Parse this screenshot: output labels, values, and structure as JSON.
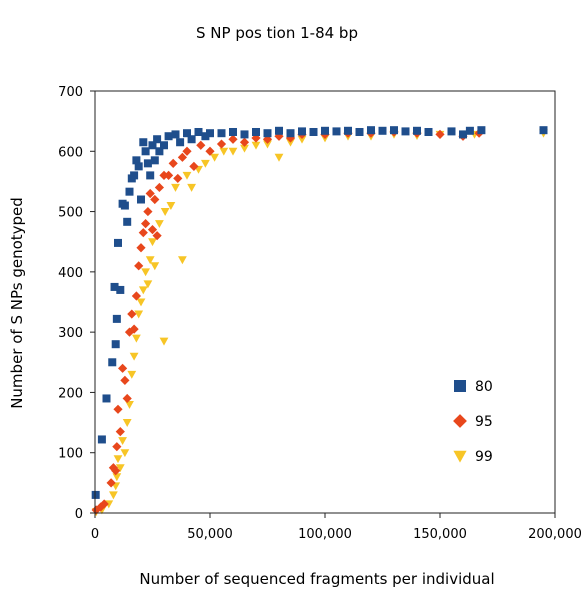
{
  "chart_data": {
    "type": "scatter",
    "title": "S NP pos tion 1-84 bp",
    "xlabel": "Number of sequenced fragments per individual",
    "ylabel": "Number of S NPs genotyped",
    "xlim": [
      0,
      200000
    ],
    "ylim": [
      0,
      700
    ],
    "x_ticks": [
      "0",
      "50,000",
      "100,000",
      "150,000",
      "200,000"
    ],
    "y_ticks": [
      "0",
      "100",
      "200",
      "300",
      "400",
      "500",
      "600",
      "700"
    ],
    "grid": false,
    "legend_position": "lower-right",
    "series": [
      {
        "name": "80",
        "marker": "square",
        "color": "#1f4e8c",
        "points": [
          [
            300,
            30
          ],
          [
            3000,
            122
          ],
          [
            5000,
            190
          ],
          [
            7500,
            250
          ],
          [
            8500,
            375
          ],
          [
            9000,
            280
          ],
          [
            9500,
            322
          ],
          [
            10000,
            448
          ],
          [
            11000,
            370
          ],
          [
            12000,
            513
          ],
          [
            13000,
            510
          ],
          [
            14000,
            483
          ],
          [
            15000,
            533
          ],
          [
            16000,
            555
          ],
          [
            17000,
            560
          ],
          [
            18000,
            585
          ],
          [
            19000,
            575
          ],
          [
            20000,
            520
          ],
          [
            21000,
            615
          ],
          [
            22000,
            600
          ],
          [
            23000,
            580
          ],
          [
            24000,
            560
          ],
          [
            25000,
            610
          ],
          [
            26000,
            585
          ],
          [
            27000,
            620
          ],
          [
            28000,
            600
          ],
          [
            30000,
            610
          ],
          [
            32000,
            625
          ],
          [
            35000,
            628
          ],
          [
            37000,
            615
          ],
          [
            40000,
            630
          ],
          [
            42000,
            620
          ],
          [
            45000,
            632
          ],
          [
            48000,
            625
          ],
          [
            50000,
            630
          ],
          [
            55000,
            630
          ],
          [
            60000,
            632
          ],
          [
            65000,
            628
          ],
          [
            70000,
            632
          ],
          [
            75000,
            630
          ],
          [
            80000,
            634
          ],
          [
            85000,
            630
          ],
          [
            90000,
            633
          ],
          [
            95000,
            632
          ],
          [
            100000,
            634
          ],
          [
            105000,
            633
          ],
          [
            110000,
            634
          ],
          [
            115000,
            632
          ],
          [
            120000,
            635
          ],
          [
            125000,
            634
          ],
          [
            130000,
            635
          ],
          [
            135000,
            633
          ],
          [
            140000,
            634
          ],
          [
            145000,
            632
          ],
          [
            155000,
            633
          ],
          [
            160000,
            628
          ],
          [
            163000,
            634
          ],
          [
            168000,
            635
          ],
          [
            195000,
            635
          ]
        ]
      },
      {
        "name": "95",
        "marker": "diamond",
        "color": "#e8471c",
        "points": [
          [
            500,
            5
          ],
          [
            2500,
            10
          ],
          [
            4000,
            15
          ],
          [
            7000,
            50
          ],
          [
            8000,
            75
          ],
          [
            9000,
            70
          ],
          [
            9500,
            110
          ],
          [
            10000,
            172
          ],
          [
            11000,
            135
          ],
          [
            12000,
            240
          ],
          [
            13000,
            220
          ],
          [
            14000,
            190
          ],
          [
            15000,
            300
          ],
          [
            16000,
            330
          ],
          [
            17000,
            305
          ],
          [
            18000,
            360
          ],
          [
            19000,
            410
          ],
          [
            20000,
            440
          ],
          [
            21000,
            465
          ],
          [
            22000,
            480
          ],
          [
            23000,
            500
          ],
          [
            24000,
            530
          ],
          [
            25000,
            470
          ],
          [
            26000,
            520
          ],
          [
            27000,
            460
          ],
          [
            28000,
            540
          ],
          [
            30000,
            560
          ],
          [
            32000,
            560
          ],
          [
            34000,
            580
          ],
          [
            36000,
            555
          ],
          [
            38000,
            590
          ],
          [
            40000,
            600
          ],
          [
            43000,
            575
          ],
          [
            46000,
            610
          ],
          [
            50000,
            600
          ],
          [
            55000,
            612
          ],
          [
            60000,
            620
          ],
          [
            65000,
            615
          ],
          [
            70000,
            622
          ],
          [
            75000,
            620
          ],
          [
            80000,
            625
          ],
          [
            85000,
            622
          ],
          [
            90000,
            628
          ],
          [
            100000,
            628
          ],
          [
            110000,
            630
          ],
          [
            120000,
            630
          ],
          [
            130000,
            632
          ],
          [
            140000,
            630
          ],
          [
            150000,
            628
          ],
          [
            160000,
            625
          ],
          [
            167000,
            630
          ]
        ]
      },
      {
        "name": "99",
        "marker": "triangle-down",
        "color": "#f7c526",
        "points": [
          [
            500,
            2
          ],
          [
            3000,
            5
          ],
          [
            6000,
            15
          ],
          [
            8000,
            30
          ],
          [
            9000,
            45
          ],
          [
            9500,
            60
          ],
          [
            10000,
            90
          ],
          [
            11000,
            75
          ],
          [
            12000,
            120
          ],
          [
            13000,
            100
          ],
          [
            14000,
            150
          ],
          [
            15000,
            180
          ],
          [
            16000,
            230
          ],
          [
            17000,
            260
          ],
          [
            18000,
            290
          ],
          [
            19000,
            330
          ],
          [
            20000,
            350
          ],
          [
            21000,
            370
          ],
          [
            22000,
            400
          ],
          [
            23000,
            380
          ],
          [
            24000,
            420
          ],
          [
            25000,
            450
          ],
          [
            26000,
            410
          ],
          [
            28000,
            480
          ],
          [
            30000,
            285
          ],
          [
            30500,
            500
          ],
          [
            33000,
            510
          ],
          [
            35000,
            540
          ],
          [
            38000,
            420
          ],
          [
            40000,
            560
          ],
          [
            42000,
            540
          ],
          [
            45000,
            570
          ],
          [
            48000,
            580
          ],
          [
            52000,
            590
          ],
          [
            56000,
            600
          ],
          [
            60000,
            600
          ],
          [
            65000,
            605
          ],
          [
            70000,
            610
          ],
          [
            75000,
            612
          ],
          [
            80000,
            590
          ],
          [
            85000,
            615
          ],
          [
            90000,
            620
          ],
          [
            100000,
            622
          ],
          [
            110000,
            625
          ],
          [
            120000,
            625
          ],
          [
            130000,
            628
          ],
          [
            140000,
            626
          ],
          [
            150000,
            628
          ],
          [
            165000,
            628
          ],
          [
            195000,
            630
          ]
        ]
      }
    ]
  }
}
